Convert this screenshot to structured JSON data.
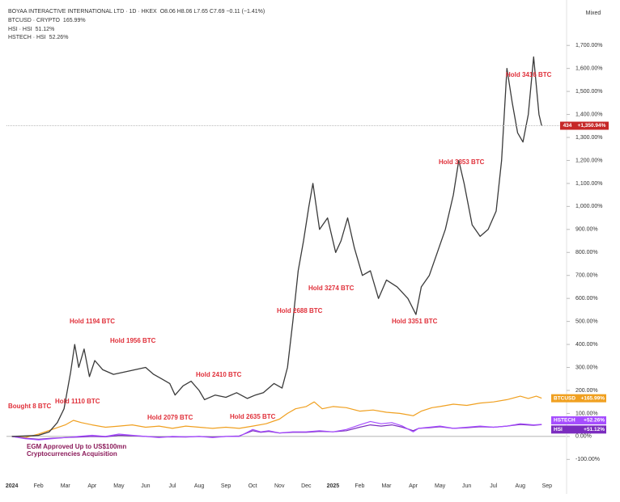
{
  "chart_data": {
    "type": "line",
    "mode_label": "Mixed",
    "xlim": [
      -0.2,
      20.7
    ],
    "xticks": [
      {
        "value": 0,
        "label": "2024"
      },
      {
        "value": 1,
        "label": "Feb"
      },
      {
        "value": 2,
        "label": "Mar"
      },
      {
        "value": 3,
        "label": "Apr"
      },
      {
        "value": 4,
        "label": "May"
      },
      {
        "value": 5,
        "label": "Jun"
      },
      {
        "value": 6,
        "label": "Jul"
      },
      {
        "value": 7,
        "label": "Aug"
      },
      {
        "value": 8,
        "label": "Sep"
      },
      {
        "value": 9,
        "label": "Oct"
      },
      {
        "value": 10,
        "label": "Nov"
      },
      {
        "value": 11,
        "label": "Dec"
      },
      {
        "value": 12,
        "label": "2025"
      },
      {
        "value": 13,
        "label": "Feb"
      },
      {
        "value": 14,
        "label": "Mar"
      },
      {
        "value": 15,
        "label": "Apr"
      },
      {
        "value": 16,
        "label": "May"
      },
      {
        "value": 17,
        "label": "Jun"
      },
      {
        "value": 18,
        "label": "Jul"
      },
      {
        "value": 19,
        "label": "Aug"
      },
      {
        "value": 20,
        "label": "Sep"
      }
    ],
    "ylim": [
      -250,
      1880
    ],
    "yticks": [
      {
        "value": -100,
        "label": "-100.00%"
      },
      {
        "value": 0,
        "label": "0.00%"
      },
      {
        "value": 100,
        "label": "100.00%"
      },
      {
        "value": 200,
        "label": "200.00%"
      },
      {
        "value": 300,
        "label": "300.00%"
      },
      {
        "value": 400,
        "label": "400.00%"
      },
      {
        "value": 500,
        "label": "500.00%"
      },
      {
        "value": 600,
        "label": "600.00%"
      },
      {
        "value": 700,
        "label": "700.00%"
      },
      {
        "value": 800,
        "label": "800.00%"
      },
      {
        "value": 900,
        "label": "900.00%"
      },
      {
        "value": 1000,
        "label": "1,000.00%"
      },
      {
        "value": 1100,
        "label": "1,100.00%"
      },
      {
        "value": 1200,
        "label": "1,200.00%"
      },
      {
        "value": 1300,
        "label": "1,300.00%"
      },
      {
        "value": 1400,
        "label": "1,400.00%"
      },
      {
        "value": 1500,
        "label": "1,500.00%"
      },
      {
        "value": 1600,
        "label": "1,600.00%"
      },
      {
        "value": 1700,
        "label": "1,700.00%"
      }
    ],
    "series": [
      {
        "name": "BOYAA INTERACTIVE INTERNATIONAL LTD · 1D · HKEX",
        "legend_value": "O8.06 H8.06 L7.65 C7.69 −0.11 (−1.41%)",
        "color": "#3a3a3a",
        "tag_name": "434",
        "last_label": "+1,350.94%",
        "tag_color": "#c62828",
        "x": [
          0,
          0.5,
          1,
          1.4,
          1.7,
          1.95,
          2.2,
          2.35,
          2.5,
          2.7,
          2.9,
          3.1,
          3.4,
          3.8,
          4.2,
          4.6,
          5.0,
          5.3,
          5.6,
          5.9,
          6.1,
          6.4,
          6.7,
          7.0,
          7.2,
          7.6,
          8.0,
          8.4,
          8.8,
          9.1,
          9.4,
          9.8,
          10.1,
          10.3,
          10.5,
          10.7,
          10.9,
          11.1,
          11.25,
          11.5,
          11.8,
          12.1,
          12.3,
          12.55,
          12.8,
          13.1,
          13.4,
          13.7,
          14.0,
          14.4,
          14.8,
          15.1,
          15.3,
          15.6,
          15.9,
          16.2,
          16.5,
          16.7,
          16.9,
          17.2,
          17.5,
          17.8,
          18.1,
          18.3,
          18.5,
          18.7,
          18.9,
          19.1,
          19.3,
          19.5,
          19.7,
          19.8
        ],
        "values": [
          0,
          2,
          5,
          20,
          60,
          120,
          280,
          400,
          300,
          380,
          260,
          330,
          290,
          270,
          280,
          290,
          300,
          270,
          250,
          230,
          180,
          220,
          240,
          200,
          160,
          180,
          170,
          190,
          165,
          180,
          190,
          230,
          210,
          300,
          500,
          720,
          850,
          1000,
          1100,
          900,
          950,
          800,
          850,
          950,
          820,
          700,
          720,
          600,
          680,
          650,
          600,
          530,
          650,
          700,
          800,
          900,
          1050,
          1200,
          1100,
          920,
          870,
          900,
          980,
          1200,
          1600,
          1450,
          1320,
          1280,
          1400,
          1650,
          1400,
          1350.94
        ]
      },
      {
        "name": "BTCUSD · CRYPTO",
        "legend_value": "165.99%",
        "color": "#f0a020",
        "tag_name": "BTCUSD",
        "last_label": "+165.99%",
        "tag_color": "#f0a020",
        "x": [
          0,
          0.5,
          1,
          1.5,
          2,
          2.3,
          2.6,
          3,
          3.5,
          4,
          4.5,
          5,
          5.5,
          6,
          6.5,
          7,
          7.5,
          8,
          8.5,
          9,
          9.5,
          10,
          10.3,
          10.6,
          11,
          11.3,
          11.6,
          12,
          12.5,
          13,
          13.5,
          14,
          14.5,
          15,
          15.3,
          15.7,
          16,
          16.5,
          17,
          17.5,
          18,
          18.5,
          19,
          19.3,
          19.6,
          19.8
        ],
        "values": [
          0,
          -5,
          10,
          30,
          50,
          70,
          60,
          50,
          40,
          45,
          50,
          40,
          45,
          35,
          45,
          40,
          35,
          40,
          35,
          45,
          55,
          75,
          100,
          120,
          130,
          150,
          120,
          130,
          125,
          110,
          115,
          105,
          100,
          90,
          110,
          125,
          130,
          140,
          135,
          145,
          150,
          160,
          175,
          165,
          175,
          165.99
        ]
      },
      {
        "name": "HSI · HSI",
        "legend_value": "51.12%",
        "color": "#7b2cbf",
        "tag_name": "HSI",
        "last_label": "+51.12%",
        "tag_color": "#7b2cbf",
        "x": [
          0,
          0.5,
          1,
          1.5,
          2,
          2.5,
          3,
          3.5,
          4,
          4.5,
          5,
          5.5,
          6,
          6.5,
          7,
          7.5,
          8,
          8.5,
          9,
          9.3,
          9.6,
          10,
          10.5,
          11,
          11.5,
          12,
          12.5,
          13,
          13.4,
          13.8,
          14.2,
          14.6,
          15,
          15.2,
          15.6,
          16,
          16.5,
          17,
          17.5,
          18,
          18.5,
          19,
          19.5,
          19.8
        ],
        "values": [
          0,
          -8,
          -12,
          -8,
          -5,
          -3,
          0,
          -2,
          5,
          3,
          0,
          -3,
          -2,
          -3,
          0,
          -3,
          0,
          2,
          25,
          18,
          22,
          15,
          18,
          18,
          22,
          20,
          25,
          40,
          50,
          45,
          50,
          40,
          25,
          35,
          38,
          42,
          35,
          38,
          42,
          40,
          45,
          52,
          48,
          51.12
        ]
      },
      {
        "name": "HSTECH · HSI",
        "legend_value": "52.26%",
        "color": "#a64dff",
        "tag_name": "HSTECH",
        "last_label": "+52.26%",
        "tag_color": "#a64dff",
        "x": [
          0,
          0.5,
          1,
          1.5,
          2,
          2.5,
          3,
          3.5,
          4,
          4.5,
          5,
          5.5,
          6,
          6.5,
          7,
          7.5,
          8,
          8.5,
          9,
          9.3,
          9.6,
          10,
          10.5,
          11,
          11.5,
          12,
          12.5,
          13,
          13.4,
          13.8,
          14.2,
          14.6,
          15,
          15.2,
          15.6,
          16,
          16.5,
          17,
          17.5,
          18,
          18.5,
          19,
          19.5,
          19.8
        ],
        "values": [
          0,
          -10,
          -15,
          -10,
          -5,
          0,
          5,
          0,
          10,
          5,
          0,
          -5,
          0,
          -2,
          0,
          -5,
          0,
          0,
          30,
          20,
          25,
          15,
          20,
          20,
          25,
          20,
          30,
          50,
          65,
          55,
          60,
          45,
          20,
          35,
          40,
          45,
          35,
          40,
          45,
          40,
          45,
          55,
          50,
          52.26
        ]
      }
    ],
    "annotations": [
      "Bought 8 BTC",
      "Hold 1110 BTC",
      "Hold 1194 BTC",
      "Hold 1956 BTC",
      "Hold 2079 BTC",
      "Hold  2410 BTC",
      "Hold 2635 BTC",
      "Hold 2688 BTC",
      "Hold 3274 BTC",
      "Hold 3351 BTC",
      "Hold 3353 BTC",
      "Hold 3416 BTC",
      "EGM Approved Up to US$100mn",
      "Cryptocurrencies Acquisition"
    ]
  }
}
